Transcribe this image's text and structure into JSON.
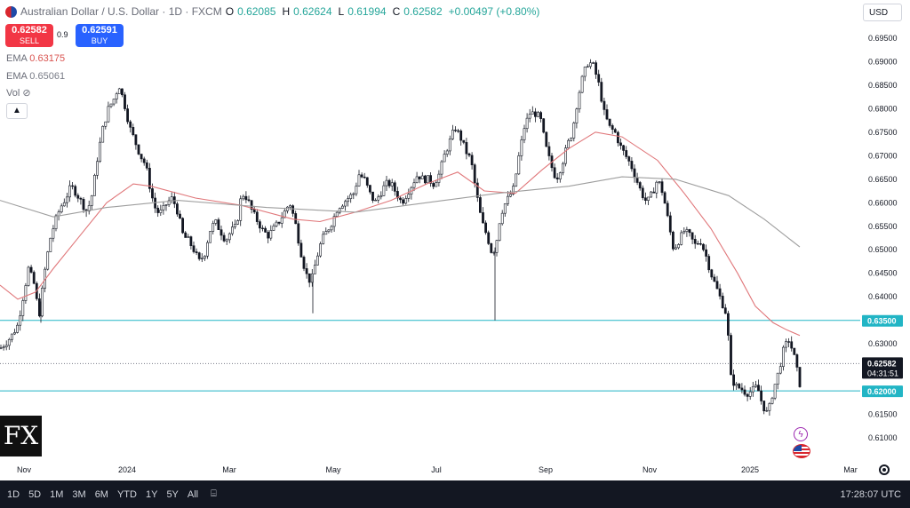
{
  "header": {
    "symbol": "Australian Dollar / U.S. Dollar · 1D · FXCM",
    "o_label": "O",
    "o_value": "0.62085",
    "h_label": "H",
    "h_value": "0.62624",
    "l_label": "L",
    "l_value": "0.61994",
    "c_label": "C",
    "c_value": "0.62582",
    "change": "+0.00497 (+0.80%)"
  },
  "trade": {
    "sell_price": "0.62582",
    "sell_label": "SELL",
    "spread": "0.9",
    "buy_price": "0.62591",
    "buy_label": "BUY"
  },
  "indicators": {
    "ema1_label": "EMA",
    "ema1_value": "0.63175",
    "ema2_label": "EMA",
    "ema2_value": "0.65061",
    "vol_label": "Vol"
  },
  "currency": "USD",
  "logo_text": "FX",
  "price_tags": {
    "current": "0.62582",
    "countdown": "04:31:51",
    "level_high": "0.63500",
    "level_low": "0.62000"
  },
  "bottom": {
    "ranges": [
      "1D",
      "5D",
      "1M",
      "3M",
      "6M",
      "YTD",
      "1Y",
      "5Y",
      "All"
    ],
    "time": "17:28:07 UTC"
  },
  "chart_data": {
    "type": "candlestick",
    "y_ticks": [
      "0.61000",
      "0.61500",
      "0.62000",
      "0.62500",
      "0.63000",
      "0.63500",
      "0.64000",
      "0.64500",
      "0.65000",
      "0.65500",
      "0.66000",
      "0.66500",
      "0.67000",
      "0.67500",
      "0.68000",
      "0.68500",
      "0.69000",
      "0.69500"
    ],
    "x_ticks": [
      "Nov",
      "2024",
      "Mar",
      "May",
      "Jul",
      "Sep",
      "Nov",
      "2025",
      "Mar"
    ],
    "ylim": [
      0.6055,
      0.6978
    ],
    "horizontal_levels": [
      0.635,
      0.62
    ],
    "last_price": 0.62582,
    "series": [
      {
        "indicator": "EMA",
        "color": "#e0777a",
        "points": [
          [
            0,
            0.6425
          ],
          [
            20,
            0.6395
          ],
          [
            40,
            0.641
          ],
          [
            60,
            0.646
          ],
          [
            90,
            0.653
          ],
          [
            120,
            0.66
          ],
          [
            150,
            0.664
          ],
          [
            170,
            0.6635
          ],
          [
            220,
            0.661
          ],
          [
            270,
            0.6595
          ],
          [
            330,
            0.6565
          ],
          [
            360,
            0.656
          ],
          [
            400,
            0.658
          ],
          [
            440,
            0.6605
          ],
          [
            480,
            0.664
          ],
          [
            515,
            0.6665
          ],
          [
            545,
            0.6625
          ],
          [
            580,
            0.662
          ],
          [
            610,
            0.667
          ],
          [
            640,
            0.6715
          ],
          [
            670,
            0.675
          ],
          [
            700,
            0.674
          ],
          [
            740,
            0.669
          ],
          [
            770,
            0.662
          ],
          [
            800,
            0.6545
          ],
          [
            830,
            0.645
          ],
          [
            850,
            0.638
          ],
          [
            870,
            0.6345
          ],
          [
            885,
            0.633
          ],
          [
            900,
            0.6318
          ]
        ]
      },
      {
        "indicator": "EMA",
        "color": "#9e9e9e",
        "points": [
          [
            0,
            0.6605
          ],
          [
            60,
            0.657
          ],
          [
            120,
            0.659
          ],
          [
            200,
            0.6605
          ],
          [
            300,
            0.659
          ],
          [
            400,
            0.658
          ],
          [
            500,
            0.6605
          ],
          [
            560,
            0.662
          ],
          [
            640,
            0.6635
          ],
          [
            700,
            0.6655
          ],
          [
            760,
            0.665
          ],
          [
            820,
            0.6615
          ],
          [
            860,
            0.6565
          ],
          [
            900,
            0.6506
          ]
        ]
      }
    ],
    "path_points": [
      [
        0,
        0.629
      ],
      [
        8,
        0.6305
      ],
      [
        14,
        0.632
      ],
      [
        20,
        0.634
      ],
      [
        26,
        0.64
      ],
      [
        32,
        0.646
      ],
      [
        38,
        0.643
      ],
      [
        44,
        0.636
      ],
      [
        50,
        0.645
      ],
      [
        56,
        0.652
      ],
      [
        62,
        0.656
      ],
      [
        68,
        0.659
      ],
      [
        74,
        0.661
      ],
      [
        80,
        0.6635
      ],
      [
        86,
        0.662
      ],
      [
        92,
        0.66
      ],
      [
        98,
        0.658
      ],
      [
        104,
        0.662
      ],
      [
        110,
        0.67
      ],
      [
        116,
        0.676
      ],
      [
        122,
        0.68
      ],
      [
        128,
        0.682
      ],
      [
        134,
        0.685
      ],
      [
        140,
        0.681
      ],
      [
        146,
        0.676
      ],
      [
        152,
        0.673
      ],
      [
        158,
        0.67
      ],
      [
        164,
        0.668
      ],
      [
        170,
        0.662
      ],
      [
        176,
        0.658
      ],
      [
        182,
        0.658
      ],
      [
        188,
        0.66
      ],
      [
        194,
        0.661
      ],
      [
        200,
        0.658
      ],
      [
        206,
        0.653
      ],
      [
        212,
        0.652
      ],
      [
        218,
        0.65
      ],
      [
        224,
        0.6475
      ],
      [
        230,
        0.649
      ],
      [
        236,
        0.654
      ],
      [
        242,
        0.656
      ],
      [
        248,
        0.654
      ],
      [
        254,
        0.652
      ],
      [
        260,
        0.654
      ],
      [
        266,
        0.655
      ],
      [
        272,
        0.662
      ],
      [
        278,
        0.661
      ],
      [
        284,
        0.658
      ],
      [
        290,
        0.656
      ],
      [
        296,
        0.654
      ],
      [
        302,
        0.653
      ],
      [
        308,
        0.6545
      ],
      [
        314,
        0.656
      ],
      [
        320,
        0.658
      ],
      [
        326,
        0.66
      ],
      [
        332,
        0.656
      ],
      [
        338,
        0.65
      ],
      [
        344,
        0.645
      ],
      [
        350,
        0.643
      ],
      [
        356,
        0.648
      ],
      [
        362,
        0.652
      ],
      [
        368,
        0.654
      ],
      [
        374,
        0.656
      ],
      [
        380,
        0.659
      ],
      [
        386,
        0.66
      ],
      [
        392,
        0.661
      ],
      [
        398,
        0.662
      ],
      [
        404,
        0.666
      ],
      [
        410,
        0.665
      ],
      [
        416,
        0.662
      ],
      [
        422,
        0.66
      ],
      [
        428,
        0.662
      ],
      [
        434,
        0.664
      ],
      [
        440,
        0.664
      ],
      [
        446,
        0.662
      ],
      [
        452,
        0.66
      ],
      [
        458,
        0.662
      ],
      [
        464,
        0.664
      ],
      [
        470,
        0.666
      ],
      [
        476,
        0.665
      ],
      [
        482,
        0.665
      ],
      [
        488,
        0.664
      ],
      [
        494,
        0.666
      ],
      [
        500,
        0.67
      ],
      [
        506,
        0.673
      ],
      [
        512,
        0.676
      ],
      [
        518,
        0.674
      ],
      [
        524,
        0.671
      ],
      [
        530,
        0.669
      ],
      [
        536,
        0.662
      ],
      [
        542,
        0.656
      ],
      [
        548,
        0.653
      ],
      [
        554,
        0.649
      ],
      [
        558,
        0.651
      ],
      [
        562,
        0.656
      ],
      [
        566,
        0.659
      ],
      [
        572,
        0.661
      ],
      [
        578,
        0.663
      ],
      [
        584,
        0.67
      ],
      [
        590,
        0.676
      ],
      [
        596,
        0.679
      ],
      [
        602,
        0.679
      ],
      [
        608,
        0.678
      ],
      [
        614,
        0.672
      ],
      [
        620,
        0.668
      ],
      [
        626,
        0.665
      ],
      [
        632,
        0.668
      ],
      [
        638,
        0.672
      ],
      [
        644,
        0.675
      ],
      [
        650,
        0.682
      ],
      [
        656,
        0.687
      ],
      [
        662,
        0.69
      ],
      [
        668,
        0.689
      ],
      [
        674,
        0.685
      ],
      [
        680,
        0.679
      ],
      [
        686,
        0.676
      ],
      [
        692,
        0.675
      ],
      [
        698,
        0.672
      ],
      [
        704,
        0.67
      ],
      [
        710,
        0.668
      ],
      [
        716,
        0.665
      ],
      [
        722,
        0.662
      ],
      [
        728,
        0.66
      ],
      [
        734,
        0.662
      ],
      [
        740,
        0.665
      ],
      [
        746,
        0.662
      ],
      [
        752,
        0.656
      ],
      [
        758,
        0.65
      ],
      [
        764,
        0.652
      ],
      [
        770,
        0.654
      ],
      [
        776,
        0.653
      ],
      [
        782,
        0.651
      ],
      [
        788,
        0.652
      ],
      [
        794,
        0.649
      ],
      [
        800,
        0.645
      ],
      [
        806,
        0.642
      ],
      [
        812,
        0.639
      ],
      [
        818,
        0.636
      ],
      [
        822,
        0.623
      ],
      [
        828,
        0.621
      ],
      [
        834,
        0.6205
      ],
      [
        840,
        0.6195
      ],
      [
        846,
        0.62
      ],
      [
        852,
        0.621
      ],
      [
        858,
        0.617
      ],
      [
        864,
        0.615
      ],
      [
        870,
        0.62
      ],
      [
        876,
        0.624
      ],
      [
        882,
        0.629
      ],
      [
        888,
        0.631
      ],
      [
        894,
        0.627
      ],
      [
        900,
        0.6215
      ],
      [
        904,
        0.6258
      ]
    ],
    "wick_spikes": [
      [
        557,
        0.635
      ],
      [
        352,
        0.6365
      ],
      [
        46,
        0.6345
      ]
    ]
  }
}
